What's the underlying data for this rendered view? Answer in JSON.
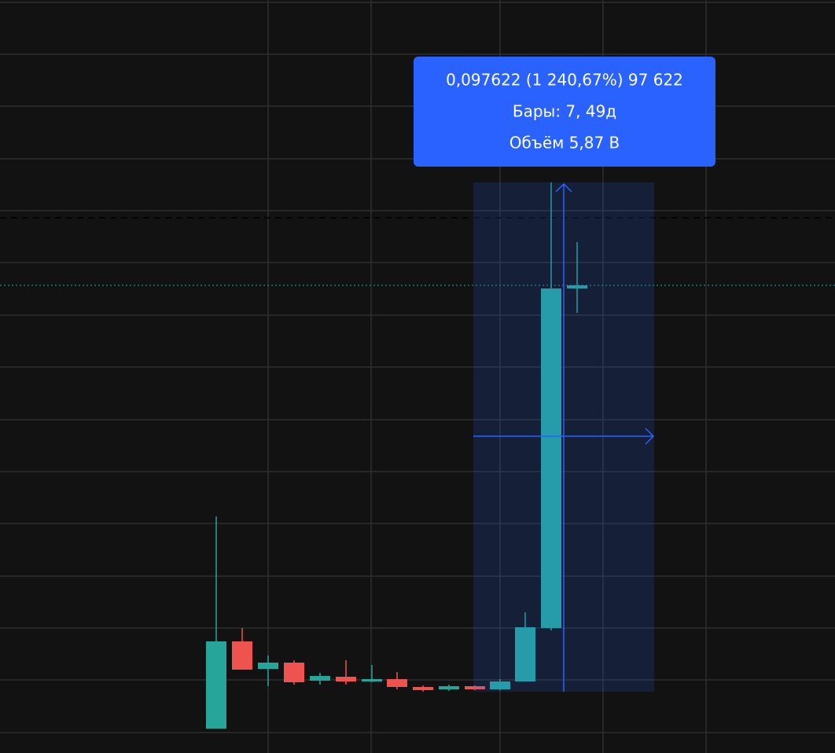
{
  "tooltip": {
    "line1": "0,097622 (1 240,67%) 97 622",
    "line2": "Бары: 7, 49д",
    "line3": "Объём 5,87 B"
  }
}
